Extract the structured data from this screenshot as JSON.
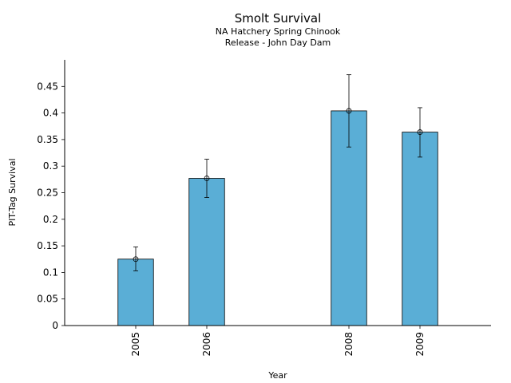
{
  "chart_data": {
    "type": "bar",
    "title": "Smolt Survival",
    "subtitle_lines": [
      "NA Hatchery Spring Chinook",
      "Release - John Day Dam"
    ],
    "xlabel": "Year",
    "ylabel": "PIT-Tag Survival",
    "categories": [
      "2005",
      "2006",
      "2008",
      "2009"
    ],
    "x_positions": [
      2005,
      2006,
      2008,
      2009
    ],
    "xlim": [
      2004.0,
      2010.0
    ],
    "values": [
      0.125,
      0.277,
      0.404,
      0.364
    ],
    "error_low": [
      0.103,
      0.241,
      0.336,
      0.317
    ],
    "error_high": [
      0.148,
      0.313,
      0.472,
      0.41
    ],
    "ylim": [
      0,
      0.5
    ],
    "yticks": [
      0,
      0.05,
      0.1,
      0.15,
      0.2,
      0.25,
      0.3,
      0.35,
      0.4,
      0.45
    ],
    "ytick_labels": [
      "0",
      "0.05",
      "0.1",
      "0.15",
      "0.2",
      "0.25",
      "0.3",
      "0.35",
      "0.4",
      "0.45"
    ],
    "bar_color": "#5aaed6",
    "grid": false,
    "legend": "none"
  }
}
